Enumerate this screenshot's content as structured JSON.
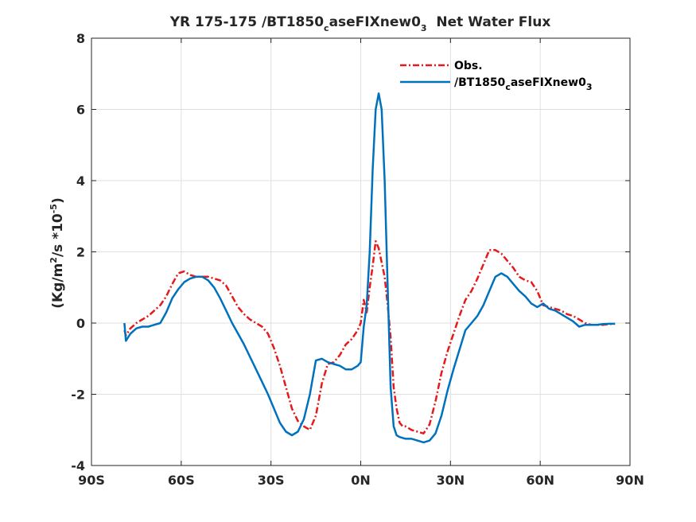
{
  "chart_data": {
    "type": "line",
    "title": {
      "prefix": "YR 175-175 /BT1850",
      "sub": "c",
      "mid": "aseFIXnew0",
      "sub2": "3",
      "suffix": "  Net Water Flux"
    },
    "ylabel": {
      "part1": "(Kg/m",
      "sup1": "2",
      "part2": "/s *10",
      "sup2": "-5",
      "part3": ")"
    },
    "xlim": [
      -90,
      90
    ],
    "ylim": [
      -4,
      8
    ],
    "grid": true,
    "legend_position": "top-right",
    "x_ticks": [
      {
        "value": -90,
        "label": "90S"
      },
      {
        "value": -60,
        "label": "60S"
      },
      {
        "value": -30,
        "label": "30S"
      },
      {
        "value": 0,
        "label": "0N"
      },
      {
        "value": 30,
        "label": "30N"
      },
      {
        "value": 60,
        "label": "60N"
      },
      {
        "value": 90,
        "label": "90N"
      }
    ],
    "y_ticks": [
      {
        "value": -4,
        "label": "-4"
      },
      {
        "value": -2,
        "label": "-2"
      },
      {
        "value": 0,
        "label": "0"
      },
      {
        "value": 2,
        "label": "2"
      },
      {
        "value": 4,
        "label": "4"
      },
      {
        "value": 6,
        "label": "6"
      },
      {
        "value": 8,
        "label": "8"
      }
    ],
    "series": [
      {
        "name": "Obs.",
        "color": "#e41a1c",
        "dash": "dashdot",
        "x": [
          -79,
          -78.5,
          -77,
          -75,
          -73,
          -71,
          -69,
          -67,
          -65,
          -63,
          -61,
          -59,
          -57,
          -55,
          -53,
          -51,
          -49,
          -47,
          -45,
          -43,
          -41,
          -39,
          -37,
          -35,
          -33,
          -31,
          -29,
          -27,
          -25,
          -23,
          -21,
          -19,
          -17,
          -15,
          -13,
          -11,
          -9,
          -7,
          -5,
          -3,
          -1,
          0,
          1,
          2,
          3,
          4,
          5,
          6,
          7,
          8,
          9,
          10,
          11,
          12,
          13,
          14,
          15,
          17,
          19,
          21,
          23,
          25,
          27,
          29,
          31,
          33,
          35,
          37,
          39,
          41,
          43,
          45,
          47,
          49,
          51,
          53,
          55,
          57,
          59,
          61,
          63,
          65,
          67,
          69,
          71,
          73,
          75,
          77,
          79,
          81,
          83,
          85
        ],
        "y": [
          -0.2,
          -0.35,
          -0.15,
          0.0,
          0.1,
          0.2,
          0.35,
          0.5,
          0.75,
          1.1,
          1.4,
          1.45,
          1.35,
          1.3,
          1.3,
          1.3,
          1.25,
          1.2,
          1.05,
          0.75,
          0.45,
          0.25,
          0.1,
          0.0,
          -0.1,
          -0.3,
          -0.7,
          -1.2,
          -1.8,
          -2.4,
          -2.75,
          -2.9,
          -3.0,
          -2.6,
          -1.7,
          -1.15,
          -1.1,
          -0.9,
          -0.6,
          -0.45,
          -0.2,
          0.0,
          0.65,
          0.3,
          1.0,
          1.6,
          2.3,
          2.1,
          1.7,
          1.3,
          0.5,
          -0.4,
          -1.8,
          -2.4,
          -2.8,
          -2.9,
          -2.9,
          -3.0,
          -3.05,
          -3.1,
          -2.85,
          -2.2,
          -1.4,
          -0.8,
          -0.3,
          0.2,
          0.65,
          0.9,
          1.25,
          1.65,
          2.05,
          2.05,
          1.95,
          1.75,
          1.55,
          1.3,
          1.2,
          1.15,
          0.9,
          0.5,
          0.45,
          0.4,
          0.35,
          0.25,
          0.2,
          0.1,
          0.0,
          -0.05,
          -0.05,
          -0.05,
          -0.03,
          -0.02
        ]
      },
      {
        "name": "/BT1850caseFIXnew03",
        "legend": {
          "prefix": "/BT1850",
          "sub": "c",
          "mid": "aseFIXnew0",
          "sub2": "3"
        },
        "color": "#0072bd",
        "dash": "solid",
        "x": [
          -79,
          -78.5,
          -77,
          -75,
          -73,
          -71,
          -69,
          -67,
          -65,
          -63,
          -61,
          -59,
          -57,
          -55,
          -53,
          -51,
          -49,
          -47,
          -45,
          -43,
          -41,
          -39,
          -37,
          -35,
          -33,
          -31,
          -29,
          -27,
          -25,
          -23,
          -21,
          -19,
          -17,
          -15,
          -13,
          -11,
          -9,
          -7,
          -5,
          -3,
          -1,
          0,
          1,
          2,
          3,
          4,
          5,
          6,
          7,
          8,
          9,
          10,
          11,
          12,
          13,
          15,
          17,
          19,
          21,
          23,
          25,
          27,
          29,
          31,
          33,
          35,
          37,
          39,
          41,
          43,
          45,
          47,
          49,
          51,
          53,
          55,
          57,
          59,
          61,
          63,
          65,
          67,
          69,
          71,
          73,
          75,
          77,
          79,
          81,
          83,
          85
        ],
        "y": [
          0.0,
          -0.5,
          -0.3,
          -0.15,
          -0.1,
          -0.1,
          -0.05,
          0.0,
          0.3,
          0.7,
          0.95,
          1.15,
          1.25,
          1.3,
          1.3,
          1.2,
          1.0,
          0.7,
          0.35,
          0.0,
          -0.3,
          -0.6,
          -0.95,
          -1.3,
          -1.65,
          -2.0,
          -2.4,
          -2.8,
          -3.05,
          -3.15,
          -3.05,
          -2.7,
          -2.0,
          -1.05,
          -1.0,
          -1.1,
          -1.15,
          -1.2,
          -1.3,
          -1.3,
          -1.2,
          -1.1,
          -0.1,
          0.5,
          2.0,
          4.3,
          6.0,
          6.45,
          6.0,
          4.0,
          1.0,
          -1.8,
          -2.9,
          -3.15,
          -3.2,
          -3.25,
          -3.25,
          -3.3,
          -3.35,
          -3.3,
          -3.1,
          -2.6,
          -1.9,
          -1.3,
          -0.75,
          -0.2,
          0.0,
          0.2,
          0.5,
          0.9,
          1.3,
          1.4,
          1.3,
          1.1,
          0.9,
          0.75,
          0.55,
          0.45,
          0.55,
          0.4,
          0.35,
          0.25,
          0.15,
          0.05,
          -0.1,
          -0.05,
          -0.05,
          -0.05,
          -0.03,
          -0.02,
          -0.02
        ]
      }
    ]
  }
}
